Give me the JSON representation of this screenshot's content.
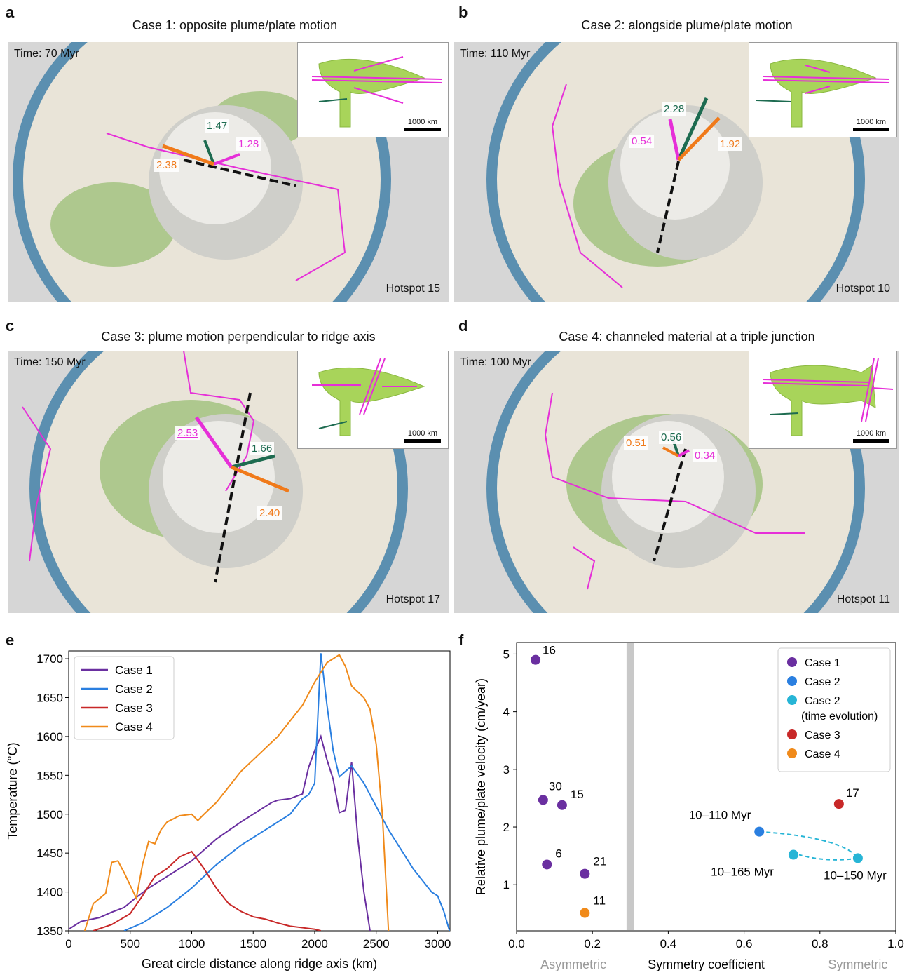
{
  "panels": [
    {
      "letter": "a",
      "title": "Case 1: opposite plume/plate motion",
      "time": "Time: 70 Myr",
      "hotspot": "Hotspot 15",
      "vectors": [
        {
          "value": "1.47",
          "color": "#1d6b50"
        },
        {
          "value": "1.28",
          "color": "#e62fd8"
        },
        {
          "value": "2.38",
          "color": "#f07a1a"
        }
      ]
    },
    {
      "letter": "b",
      "title": "Case 2: alongside plume/plate motion",
      "time": "Time: 110 Myr",
      "hotspot": "Hotspot 10",
      "vectors": [
        {
          "value": "2.28",
          "color": "#1d6b50"
        },
        {
          "value": "0.54",
          "color": "#e62fd8"
        },
        {
          "value": "1.92",
          "color": "#f07a1a"
        }
      ]
    },
    {
      "letter": "c",
      "title": "Case 3: plume motion perpendicular to ridge axis",
      "time": "Time: 150 Myr",
      "hotspot": "Hotspot 17",
      "vectors": [
        {
          "value": "1.66",
          "color": "#1d6b50"
        },
        {
          "value": "2.53",
          "color": "#e62fd8"
        },
        {
          "value": "2.40",
          "color": "#f07a1a"
        }
      ]
    },
    {
      "letter": "d",
      "title": "Case 4: channeled material at a triple junction",
      "time": "Time: 100 Myr",
      "hotspot": "Hotspot 11",
      "vectors": [
        {
          "value": "0.56",
          "color": "#1d6b50"
        },
        {
          "value": "0.51",
          "color": "#f07a1a"
        },
        {
          "value": "0.34",
          "color": "#e62fd8"
        }
      ]
    }
  ],
  "inset_scale": "1000 km",
  "chart_e_letter": "e",
  "chart_f_letter": "f",
  "chart_data": [
    {
      "type": "line",
      "xlabel": "Great circle distance along ridge axis (km)",
      "ylabel": "Temperature (°C)",
      "xlim": [
        0,
        3100
      ],
      "ylim": [
        1350,
        1710
      ],
      "xticks": [
        0,
        500,
        1000,
        1500,
        2000,
        2500,
        3000
      ],
      "yticks": [
        1350,
        1400,
        1450,
        1500,
        1550,
        1600,
        1650,
        1700
      ],
      "legend": "top-left",
      "series": [
        {
          "name": "Case 1",
          "color": "#6a2fa0",
          "x": [
            0,
            100,
            250,
            350,
            450,
            550,
            650,
            800,
            1000,
            1200,
            1400,
            1550,
            1650,
            1700,
            1800,
            1900,
            1950,
            2000,
            2050,
            2100,
            2150,
            2200,
            2250,
            2300,
            2350,
            2400,
            2450
          ],
          "y": [
            1352,
            1362,
            1367,
            1374,
            1380,
            1393,
            1405,
            1420,
            1440,
            1468,
            1490,
            1505,
            1515,
            1518,
            1520,
            1526,
            1560,
            1582,
            1600,
            1570,
            1545,
            1502,
            1505,
            1567,
            1470,
            1400,
            1350
          ]
        },
        {
          "name": "Case 2",
          "color": "#2a7fe0",
          "x": [
            450,
            600,
            800,
            1000,
            1200,
            1400,
            1600,
            1800,
            1900,
            1950,
            2000,
            2050,
            2100,
            2150,
            2200,
            2300,
            2400,
            2500,
            2600,
            2800,
            2900,
            2950,
            3000,
            3050,
            3100
          ],
          "y": [
            1350,
            1360,
            1380,
            1405,
            1435,
            1460,
            1480,
            1500,
            1520,
            1525,
            1540,
            1707,
            1640,
            1582,
            1548,
            1562,
            1540,
            1510,
            1480,
            1430,
            1410,
            1400,
            1395,
            1375,
            1348
          ]
        },
        {
          "name": "Case 3",
          "color": "#c82828",
          "x": [
            200,
            350,
            500,
            600,
            700,
            800,
            900,
            1000,
            1100,
            1200,
            1300,
            1400,
            1500,
            1600,
            1700,
            1800,
            1900,
            2000,
            2050
          ],
          "y": [
            1350,
            1358,
            1372,
            1395,
            1420,
            1430,
            1445,
            1452,
            1430,
            1405,
            1385,
            1375,
            1368,
            1365,
            1360,
            1356,
            1354,
            1352,
            1350
          ]
        },
        {
          "name": "Case 4",
          "color": "#f08a1a",
          "x": [
            130,
            200,
            300,
            350,
            400,
            450,
            550,
            600,
            650,
            700,
            750,
            800,
            900,
            1000,
            1050,
            1100,
            1200,
            1300,
            1400,
            1500,
            1600,
            1700,
            1750,
            1800,
            1900,
            2000,
            2100,
            2200,
            2250,
            2300,
            2400,
            2450,
            2500,
            2550,
            2600
          ],
          "y": [
            1350,
            1385,
            1398,
            1438,
            1440,
            1425,
            1392,
            1435,
            1465,
            1462,
            1480,
            1490,
            1498,
            1500,
            1492,
            1500,
            1515,
            1535,
            1555,
            1570,
            1585,
            1600,
            1610,
            1620,
            1640,
            1670,
            1695,
            1705,
            1690,
            1665,
            1650,
            1635,
            1590,
            1500,
            1350
          ]
        }
      ]
    },
    {
      "type": "scatter",
      "xlabel": "Symmetry coefficient",
      "ylabel": "Relative plume/plate velocity (cm/year)",
      "xlim": [
        0,
        1
      ],
      "ylim": [
        0.2,
        5.2
      ],
      "xticks": [
        "0.0",
        "0.2",
        "0.4",
        "0.6",
        "0.8",
        "1.0"
      ],
      "yticks": [
        1,
        2,
        3,
        4,
        5
      ],
      "x_left_annotation": "Asymmetric",
      "x_right_annotation": "Symmetric",
      "threshold_band": [
        0.29,
        0.31
      ],
      "legend": "top-right",
      "legend_entries": [
        {
          "label": "Case 1",
          "color": "#6a2fa0"
        },
        {
          "label": "Case 2",
          "color": "#2a7fe0"
        },
        {
          "label": "Case 2",
          "label2": "(time evolution)",
          "color": "#27b5d6"
        },
        {
          "label": "Case 3",
          "color": "#c82828"
        },
        {
          "label": "Case 4",
          "color": "#f08a1a"
        }
      ],
      "points": [
        {
          "x": 0.05,
          "y": 4.9,
          "label": "16",
          "color": "#6a2fa0"
        },
        {
          "x": 0.07,
          "y": 2.47,
          "label": "30",
          "color": "#6a2fa0"
        },
        {
          "x": 0.12,
          "y": 2.38,
          "label": "15",
          "color": "#6a2fa0"
        },
        {
          "x": 0.08,
          "y": 1.35,
          "label": "6",
          "color": "#6a2fa0"
        },
        {
          "x": 0.18,
          "y": 1.19,
          "label": "21",
          "color": "#6a2fa0"
        },
        {
          "x": 0.18,
          "y": 0.51,
          "label": "11",
          "color": "#f08a1a"
        },
        {
          "x": 0.85,
          "y": 2.4,
          "label": "17",
          "color": "#c82828"
        },
        {
          "x": 0.64,
          "y": 1.92,
          "label": "10–110 Myr",
          "color": "#2a7fe0"
        },
        {
          "x": 0.9,
          "y": 1.46,
          "label": "10–150 Myr",
          "color": "#27b5d6"
        },
        {
          "x": 0.73,
          "y": 1.52,
          "label": "10–165 Myr",
          "color": "#27b5d6"
        }
      ]
    }
  ]
}
